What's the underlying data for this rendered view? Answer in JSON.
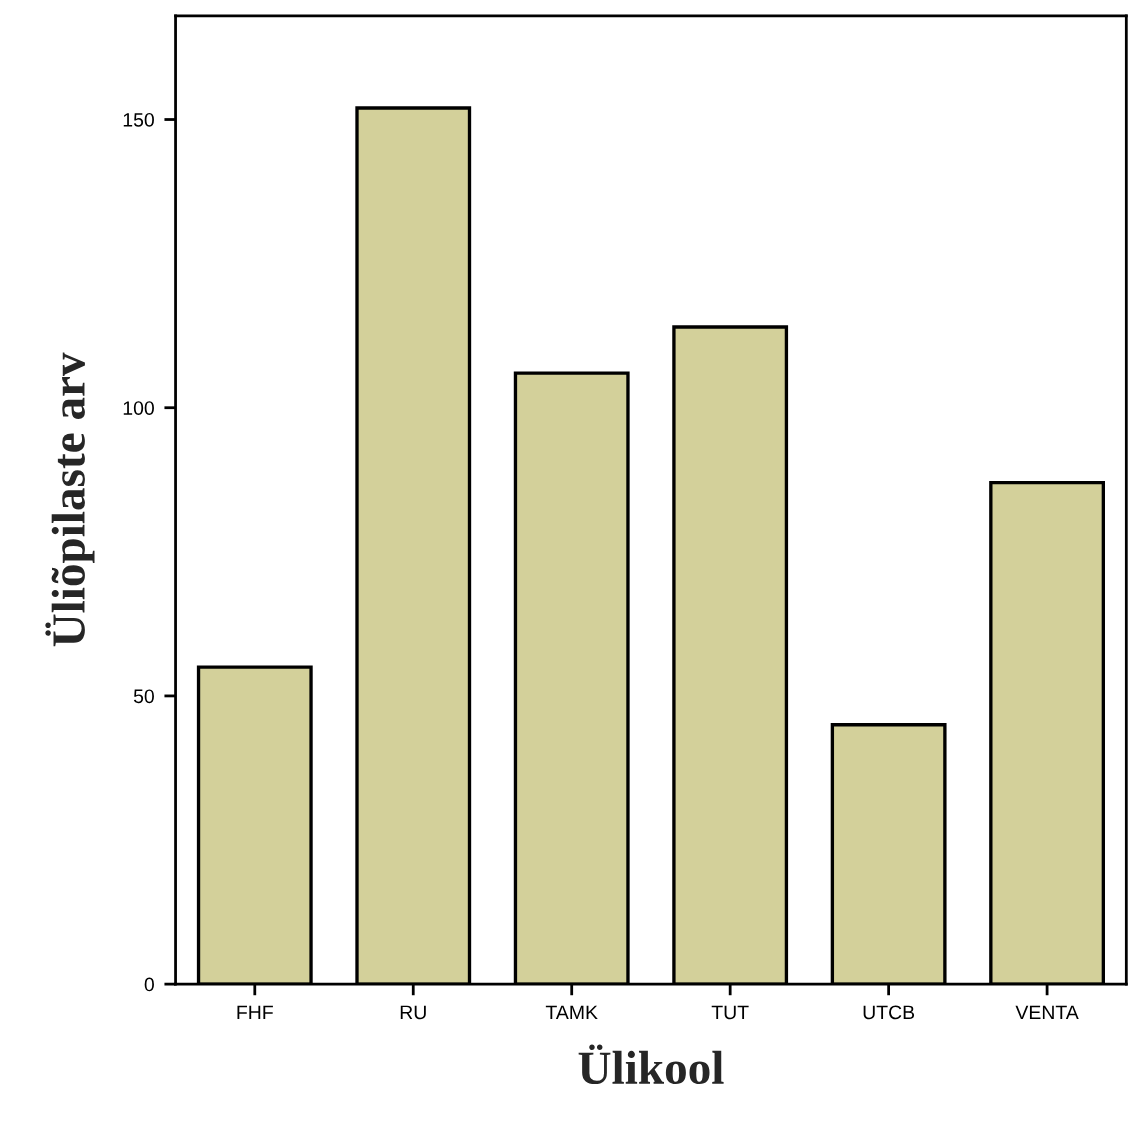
{
  "chart_data": {
    "type": "bar",
    "xlabel": "Ülikool",
    "ylabel": "Üliõpilaste arv",
    "categories": [
      "FHF",
      "RU",
      "TAMK",
      "TUT",
      "UTCB",
      "VENTA"
    ],
    "values": [
      55,
      152,
      106,
      114,
      45,
      87
    ],
    "color": "#d3d09a",
    "ylim": [
      0,
      168
    ],
    "yticks": [
      0,
      50,
      100,
      150
    ],
    "grid": false,
    "legend": false
  }
}
